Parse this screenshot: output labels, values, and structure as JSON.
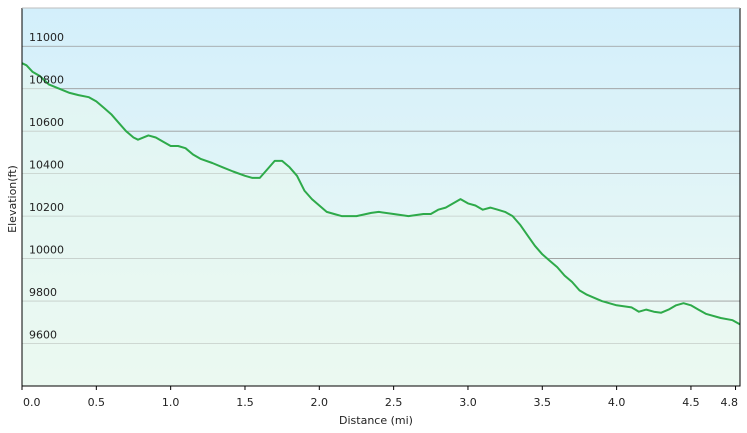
{
  "chart_data": {
    "type": "area",
    "xlabel": "Distance  (mi)",
    "ylabel": "Elevation(ft)",
    "xlim": [
      0,
      4.83
    ],
    "ylim": [
      9400,
      11180
    ],
    "x_ticks": [
      "0.0",
      "0.5",
      "1.0",
      "1.5",
      "2.0",
      "2.5",
      "3.0",
      "3.5",
      "4.0",
      "4.5",
      "4.8"
    ],
    "x_tick_values": [
      0,
      0.5,
      1.0,
      1.5,
      2.0,
      2.5,
      3.0,
      3.5,
      4.0,
      4.5,
      4.8
    ],
    "y_ticks": [
      "9600",
      "9800",
      "10000",
      "10200",
      "10400",
      "10600",
      "10800",
      "11000"
    ],
    "y_tick_values": [
      9600,
      9800,
      10000,
      10200,
      10400,
      10600,
      10800,
      11000
    ],
    "grid": true,
    "colors": {
      "line": "#2eaa4a",
      "fill_top": "#d7f0fb",
      "fill_bottom": "#eefaf0",
      "grid": "#9a9a9a",
      "axis": "#000000"
    },
    "series": [
      {
        "x": [
          0.0,
          0.03,
          0.07,
          0.12,
          0.18,
          0.25,
          0.32,
          0.38,
          0.45,
          0.5,
          0.55,
          0.6,
          0.65,
          0.7,
          0.75,
          0.78,
          0.85,
          0.9,
          0.95,
          1.0,
          1.05,
          1.1,
          1.15,
          1.2,
          1.28,
          1.35,
          1.42,
          1.5,
          1.55,
          1.6,
          1.65,
          1.7,
          1.75,
          1.8,
          1.85,
          1.9,
          1.95,
          2.0,
          2.05,
          2.1,
          2.15,
          2.25,
          2.35,
          2.4,
          2.5,
          2.6,
          2.7,
          2.75,
          2.8,
          2.85,
          2.9,
          2.95,
          3.0,
          3.05,
          3.1,
          3.15,
          3.2,
          3.25,
          3.3,
          3.35,
          3.4,
          3.45,
          3.5,
          3.55,
          3.6,
          3.65,
          3.7,
          3.75,
          3.8,
          3.9,
          4.0,
          4.1,
          4.15,
          4.2,
          4.25,
          4.3,
          4.35,
          4.4,
          4.45,
          4.5,
          4.55,
          4.6,
          4.7,
          4.78,
          4.83
        ],
        "y": [
          10920,
          10910,
          10880,
          10860,
          10820,
          10800,
          10780,
          10770,
          10760,
          10740,
          10710,
          10680,
          10640,
          10600,
          10570,
          10560,
          10580,
          10570,
          10550,
          10530,
          10530,
          10520,
          10490,
          10470,
          10450,
          10430,
          10410,
          10390,
          10380,
          10380,
          10420,
          10460,
          10460,
          10430,
          10390,
          10320,
          10280,
          10250,
          10220,
          10210,
          10200,
          10200,
          10215,
          10220,
          10210,
          10200,
          10210,
          10210,
          10230,
          10240,
          10260,
          10280,
          10260,
          10250,
          10230,
          10240,
          10230,
          10220,
          10200,
          10160,
          10110,
          10060,
          10020,
          9990,
          9960,
          9920,
          9890,
          9850,
          9830,
          9800,
          9780,
          9770,
          9750,
          9760,
          9750,
          9745,
          9760,
          9780,
          9790,
          9780,
          9760,
          9740,
          9720,
          9710,
          9690
        ]
      }
    ]
  }
}
